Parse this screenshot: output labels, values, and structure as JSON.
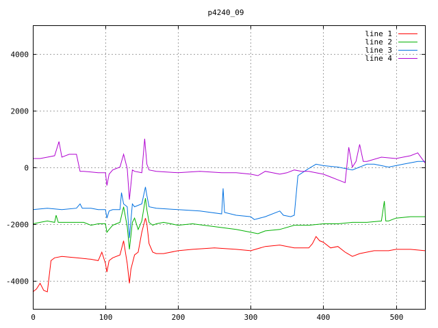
{
  "chart_data": {
    "type": "line",
    "title": "p4240_09",
    "xlabel": "",
    "ylabel": "",
    "xlim": [
      0,
      540
    ],
    "ylim": [
      -5000,
      5000
    ],
    "x_ticks": [
      0,
      100,
      200,
      300,
      400,
      500
    ],
    "y_ticks": [
      -4000,
      -2000,
      0,
      2000,
      4000
    ],
    "grid": true,
    "legend_position": "top-right",
    "series": [
      {
        "name": "line 1",
        "color": "#ff0000",
        "x": [
          0,
          5,
          10,
          15,
          20,
          25,
          30,
          40,
          60,
          80,
          90,
          95,
          100,
          102,
          105,
          110,
          120,
          125,
          130,
          133,
          135,
          140,
          145,
          150,
          155,
          157,
          160,
          165,
          170,
          180,
          200,
          220,
          250,
          280,
          300,
          320,
          340,
          360,
          380,
          385,
          390,
          395,
          400,
          410,
          420,
          430,
          440,
          450,
          470,
          490,
          500,
          520,
          540
        ],
        "y": [
          -4400,
          -4300,
          -4100,
          -4350,
          -4400,
          -3300,
          -3200,
          -3150,
          -3200,
          -3250,
          -3300,
          -3000,
          -3400,
          -3700,
          -3300,
          -3200,
          -3100,
          -2600,
          -3400,
          -4100,
          -3600,
          -3100,
          -3000,
          -2300,
          -1800,
          -2000,
          -2700,
          -3000,
          -3050,
          -3050,
          -2950,
          -2900,
          -2850,
          -2900,
          -2950,
          -2800,
          -2750,
          -2850,
          -2850,
          -2700,
          -2450,
          -2600,
          -2650,
          -2850,
          -2800,
          -3000,
          -3150,
          -3050,
          -2950,
          -2950,
          -2900,
          -2900,
          -2950
        ]
      },
      {
        "name": "line 2",
        "color": "#00b000",
        "x": [
          0,
          10,
          20,
          30,
          32,
          35,
          50,
          70,
          80,
          90,
          100,
          102,
          105,
          110,
          120,
          125,
          130,
          133,
          137,
          140,
          145,
          150,
          155,
          157,
          160,
          165,
          170,
          180,
          200,
          220,
          250,
          280,
          300,
          310,
          320,
          340,
          360,
          380,
          400,
          420,
          440,
          460,
          480,
          484,
          486,
          490,
          500,
          520,
          540
        ],
        "y": [
          -2000,
          -1950,
          -1900,
          -1950,
          -1700,
          -1950,
          -1950,
          -1950,
          -2050,
          -2000,
          -2000,
          -2300,
          -2200,
          -2050,
          -1950,
          -1400,
          -2100,
          -2900,
          -1950,
          -1800,
          -2200,
          -1900,
          -1100,
          -1500,
          -1950,
          -2050,
          -2000,
          -1950,
          -2050,
          -2000,
          -2100,
          -2200,
          -2300,
          -2350,
          -2250,
          -2200,
          -2050,
          -2050,
          -2000,
          -2000,
          -1950,
          -1950,
          -1900,
          -1200,
          -1900,
          -1900,
          -1800,
          -1750,
          -1750
        ]
      },
      {
        "name": "line 3",
        "color": "#0070e0",
        "x": [
          0,
          20,
          40,
          60,
          65,
          68,
          80,
          90,
          100,
          102,
          105,
          110,
          120,
          122,
          125,
          130,
          133,
          137,
          140,
          150,
          155,
          157,
          160,
          170,
          200,
          230,
          260,
          262,
          264,
          280,
          300,
          305,
          320,
          340,
          345,
          355,
          360,
          365,
          380,
          390,
          400,
          420,
          440,
          460,
          470,
          480,
          490,
          500,
          510,
          520,
          530,
          540
        ],
        "y": [
          -1500,
          -1450,
          -1500,
          -1450,
          -1300,
          -1450,
          -1450,
          -1500,
          -1500,
          -1800,
          -1550,
          -1500,
          -1500,
          -900,
          -1300,
          -1400,
          -2500,
          -1300,
          -1400,
          -1300,
          -700,
          -1000,
          -1400,
          -1450,
          -1500,
          -1550,
          -1650,
          -750,
          -1600,
          -1700,
          -1750,
          -1850,
          -1750,
          -1550,
          -1700,
          -1750,
          -1700,
          -300,
          -50,
          100,
          50,
          0,
          -100,
          100,
          100,
          50,
          0,
          50,
          100,
          150,
          200,
          200
        ]
      },
      {
        "name": "line 4",
        "color": "#b000d0",
        "x": [
          0,
          10,
          20,
          30,
          36,
          40,
          50,
          60,
          65,
          70,
          90,
          100,
          102,
          105,
          110,
          120,
          125,
          130,
          133,
          137,
          140,
          150,
          154,
          157,
          160,
          170,
          200,
          230,
          260,
          280,
          300,
          310,
          320,
          330,
          340,
          350,
          360,
          370,
          380,
          400,
          410,
          420,
          430,
          435,
          440,
          445,
          450,
          455,
          460,
          480,
          500,
          520,
          530,
          540
        ],
        "y": [
          300,
          300,
          350,
          400,
          900,
          350,
          450,
          450,
          -150,
          -150,
          -200,
          -200,
          -650,
          -250,
          -100,
          0,
          450,
          -50,
          -1150,
          -100,
          -150,
          -200,
          1000,
          100,
          -100,
          -150,
          -200,
          -150,
          -200,
          -200,
          -250,
          -300,
          -150,
          -200,
          -250,
          -200,
          -100,
          -150,
          -150,
          -250,
          -350,
          -450,
          -550,
          700,
          0,
          200,
          800,
          200,
          200,
          350,
          300,
          400,
          500,
          150
        ]
      }
    ]
  }
}
